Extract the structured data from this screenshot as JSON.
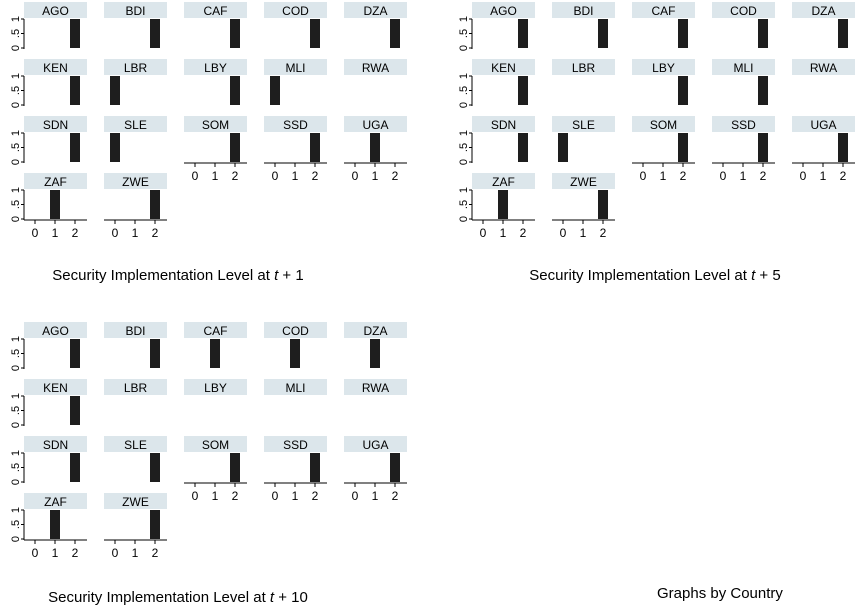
{
  "footer_note": "Graphs by Country",
  "colors": {
    "bar": "#1e1e1e",
    "strip": "#dce6eb",
    "axis": "#000000",
    "background": "#ffffff"
  },
  "chart_data": [
    {
      "type": "bar",
      "panel_key": "t1",
      "title": "Security Implementation Level at t + 1",
      "title_prefix": "Security Implementation Level at ",
      "title_var": "t",
      "title_suffix": " + 1",
      "x_ticks": [
        "0",
        "1",
        "2"
      ],
      "y_ticks": [
        "0",
        ".5",
        "1"
      ],
      "ylim": [
        0,
        1
      ],
      "grid": false,
      "legend": "none",
      "facets": [
        {
          "label": "AGO",
          "x": 2,
          "value": 1
        },
        {
          "label": "BDI",
          "x": 2,
          "value": 1
        },
        {
          "label": "CAF",
          "x": 2,
          "value": 1
        },
        {
          "label": "COD",
          "x": 2,
          "value": 1
        },
        {
          "label": "DZA",
          "x": 2,
          "value": 1
        },
        {
          "label": "KEN",
          "x": 2,
          "value": 1
        },
        {
          "label": "LBR",
          "x": 0,
          "value": 1
        },
        {
          "label": "LBY",
          "x": 2,
          "value": 1
        },
        {
          "label": "MLI",
          "x": 0,
          "value": 1
        },
        {
          "label": "RWA",
          "x": null,
          "value": 0
        },
        {
          "label": "SDN",
          "x": 2,
          "value": 1
        },
        {
          "label": "SLE",
          "x": 0,
          "value": 1
        },
        {
          "label": "SOM",
          "x": 2,
          "value": 1
        },
        {
          "label": "SSD",
          "x": 2,
          "value": 1
        },
        {
          "label": "UGA",
          "x": 1,
          "value": 1
        },
        {
          "label": "ZAF",
          "x": 1,
          "value": 1
        },
        {
          "label": "ZWE",
          "x": 2,
          "value": 1
        }
      ]
    },
    {
      "type": "bar",
      "panel_key": "t5",
      "title": "Security Implementation Level at t + 5",
      "title_prefix": "Security Implementation Level at ",
      "title_var": "t",
      "title_suffix": " + 5",
      "x_ticks": [
        "0",
        "1",
        "2"
      ],
      "y_ticks": [
        "0",
        ".5",
        "1"
      ],
      "ylim": [
        0,
        1
      ],
      "grid": false,
      "legend": "none",
      "facets": [
        {
          "label": "AGO",
          "x": 2,
          "value": 1
        },
        {
          "label": "BDI",
          "x": 2,
          "value": 1
        },
        {
          "label": "CAF",
          "x": 2,
          "value": 1
        },
        {
          "label": "COD",
          "x": 2,
          "value": 1
        },
        {
          "label": "DZA",
          "x": 2,
          "value": 1
        },
        {
          "label": "KEN",
          "x": 2,
          "value": 1
        },
        {
          "label": "LBR",
          "x": null,
          "value": 0
        },
        {
          "label": "LBY",
          "x": 2,
          "value": 1
        },
        {
          "label": "MLI",
          "x": 2,
          "value": 1
        },
        {
          "label": "RWA",
          "x": null,
          "value": 0
        },
        {
          "label": "SDN",
          "x": 2,
          "value": 1
        },
        {
          "label": "SLE",
          "x": 0,
          "value": 1
        },
        {
          "label": "SOM",
          "x": 2,
          "value": 1
        },
        {
          "label": "SSD",
          "x": 2,
          "value": 1
        },
        {
          "label": "UGA",
          "x": 2,
          "value": 1
        },
        {
          "label": "ZAF",
          "x": 1,
          "value": 1
        },
        {
          "label": "ZWE",
          "x": 2,
          "value": 1
        }
      ]
    },
    {
      "type": "bar",
      "panel_key": "t10",
      "title": "Security Implementation Level at t + 10",
      "title_prefix": "Security Implementation Level at ",
      "title_var": "t",
      "title_suffix": " + 10",
      "x_ticks": [
        "0",
        "1",
        "2"
      ],
      "y_ticks": [
        "0",
        ".5",
        "1"
      ],
      "ylim": [
        0,
        1
      ],
      "grid": false,
      "legend": "none",
      "facets": [
        {
          "label": "AGO",
          "x": 2,
          "value": 1
        },
        {
          "label": "BDI",
          "x": 2,
          "value": 1
        },
        {
          "label": "CAF",
          "x": 1,
          "value": 1
        },
        {
          "label": "COD",
          "x": 1,
          "value": 1
        },
        {
          "label": "DZA",
          "x": 1,
          "value": 1
        },
        {
          "label": "KEN",
          "x": 2,
          "value": 1
        },
        {
          "label": "LBR",
          "x": null,
          "value": 0
        },
        {
          "label": "LBY",
          "x": null,
          "value": 0
        },
        {
          "label": "MLI",
          "x": null,
          "value": 0
        },
        {
          "label": "RWA",
          "x": null,
          "value": 0
        },
        {
          "label": "SDN",
          "x": 2,
          "value": 1
        },
        {
          "label": "SLE",
          "x": 2,
          "value": 1
        },
        {
          "label": "SOM",
          "x": 2,
          "value": 1
        },
        {
          "label": "SSD",
          "x": 2,
          "value": 1
        },
        {
          "label": "UGA",
          "x": 2,
          "value": 1
        },
        {
          "label": "ZAF",
          "x": 1,
          "value": 1
        },
        {
          "label": "ZWE",
          "x": 2,
          "value": 1
        }
      ]
    }
  ]
}
